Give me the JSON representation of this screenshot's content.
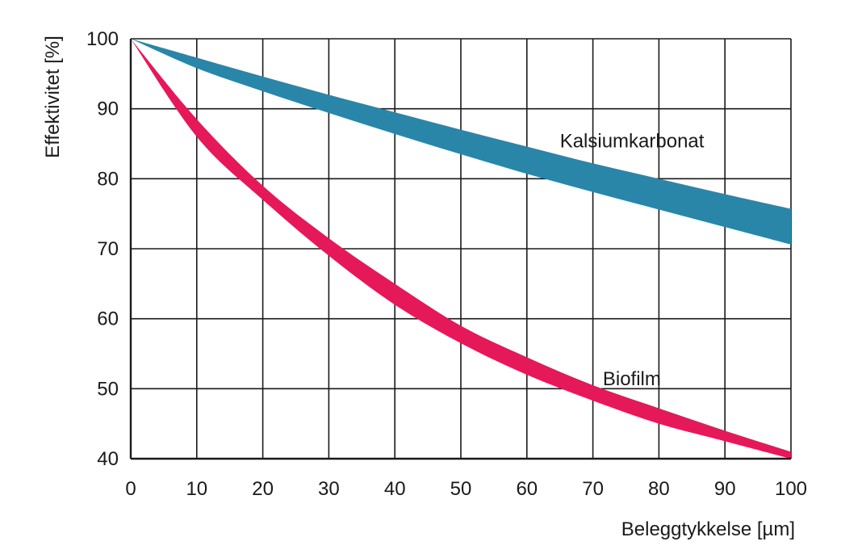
{
  "chart_data": {
    "type": "area",
    "xlabel": "Beleggtykkelse [µm]",
    "ylabel": "Effektivitet [%]",
    "xlim": [
      0,
      100
    ],
    "ylim": [
      40,
      100
    ],
    "x_ticks": [
      0,
      10,
      20,
      30,
      40,
      50,
      60,
      70,
      80,
      90,
      100
    ],
    "y_ticks": [
      40,
      50,
      60,
      70,
      80,
      90,
      100
    ],
    "grid": true,
    "series": [
      {
        "name": "Kalsiumkarbonat",
        "color": "#2a86a8",
        "x": [
          0,
          10,
          20,
          30,
          40,
          50,
          60,
          70,
          80,
          90,
          100
        ],
        "upper": [
          100,
          97.3,
          94.6,
          92.0,
          89.5,
          87.0,
          84.6,
          82.2,
          80.0,
          77.8,
          75.7
        ],
        "lower": [
          100,
          95.8,
          92.5,
          89.4,
          86.4,
          83.5,
          80.7,
          78.1,
          75.6,
          73.1,
          70.6
        ]
      },
      {
        "name": "Biofilm",
        "color": "#e5185a",
        "x": [
          0,
          10,
          20,
          30,
          40,
          50,
          60,
          70,
          80,
          90,
          100
        ],
        "upper": [
          100,
          88.5,
          79.0,
          71.5,
          65.0,
          59.0,
          54.5,
          50.5,
          47.2,
          44.0,
          41.0
        ],
        "lower": [
          100,
          86.0,
          77.0,
          69.0,
          62.0,
          56.5,
          52.0,
          48.3,
          45.0,
          42.5,
          40.0
        ]
      }
    ],
    "labels": [
      {
        "text": "Kalsiumkarbonat",
        "x": 65,
        "y": 84.5
      },
      {
        "text": "Biofilm",
        "x": 71.5,
        "y": 50.5
      }
    ]
  }
}
